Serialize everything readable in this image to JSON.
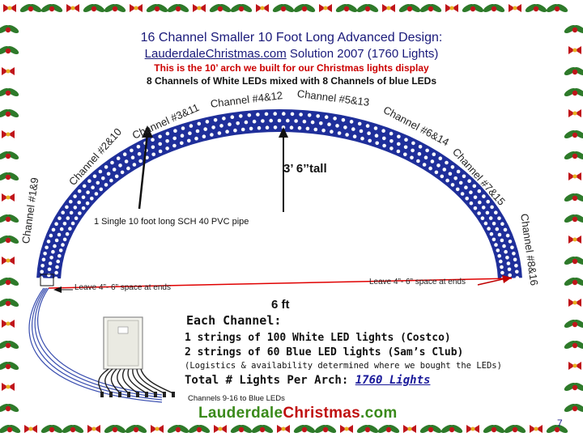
{
  "title_line1": "16 Channel Smaller 10 Foot Long Advanced Design:",
  "title_site": "LauderdaleChristmas.com",
  "title_line2_rest": " Solution 2007 (1760 Lights)",
  "subtitle1": "This is the 10’ arch we built for our Christmas lights display",
  "subtitle2": "8 Channels of White LEDs mixed with 8 Channels of blue LEDs",
  "channels": {
    "c1": "Channel #1&9",
    "c2": "Channel #2&10",
    "c3": "Channel #3&11",
    "c4": "Channel #4&12",
    "c5": "Channel #5&13",
    "c6": "Channel #6&14",
    "c7": "Channel #7&15",
    "c8": "Channel #8&16"
  },
  "height_label": "3’ 6’’tall",
  "pipe_label": "1 Single 10 foot long SCH 40 PVC pipe",
  "left_note": "Leave 4”- 6” space at ends",
  "right_note": "Leave 4”- 6” space at ends",
  "width_label": "6 ft",
  "each_title": "Each Channel:",
  "each_lines": [
    "1 strings of 100 White LED lights (Costco)",
    "2 strings of 60 Blue LED lights (Sam’s Club)"
  ],
  "logistics": "(Logistics & availability determined where we bought the LEDs)",
  "total_label": "Total # Lights Per Arch: ",
  "total_value": "1760 Lights",
  "channels_blue": "Channels 9-16 to Blue LEDs",
  "logo_left": "Lauderdale",
  "logo_right": "Christmas",
  "logo_end": ".com",
  "page_number": "7",
  "colors": {
    "title": "#1a1a7a",
    "subtitle_red": "#cc0000",
    "arch_blue": "#1f2f9a",
    "garland_red": "#c0151b",
    "garland_green": "#2e7a2a",
    "logo_green": "#3a8a1a"
  }
}
